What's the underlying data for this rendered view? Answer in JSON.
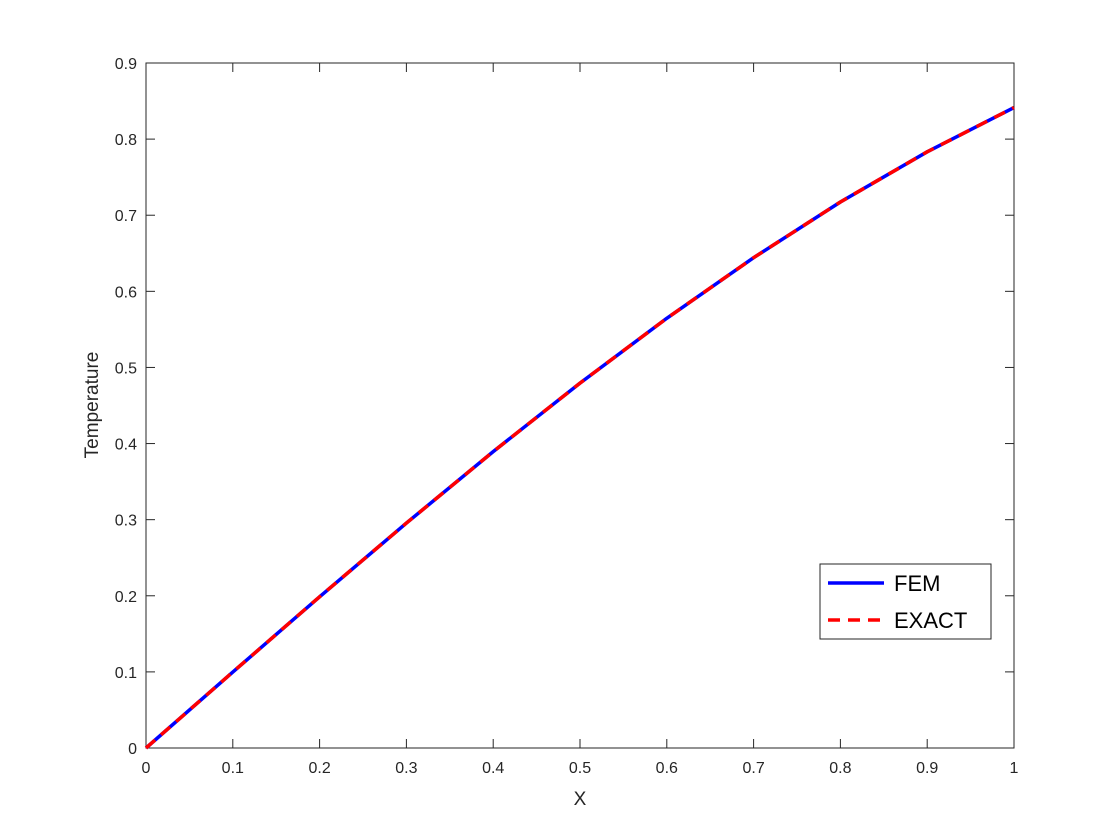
{
  "chart_data": {
    "type": "line",
    "title": "",
    "xlabel": "X",
    "ylabel": "Temperature",
    "xlim": [
      0,
      1
    ],
    "ylim": [
      0,
      0.9
    ],
    "xticks": [
      0,
      0.1,
      0.2,
      0.3,
      0.4,
      0.5,
      0.6,
      0.7,
      0.8,
      0.9,
      1
    ],
    "xtick_labels": [
      "0",
      "0.1",
      "0.2",
      "0.3",
      "0.4",
      "0.5",
      "0.6",
      "0.7",
      "0.8",
      "0.9",
      "1"
    ],
    "yticks": [
      0,
      0.1,
      0.2,
      0.3,
      0.4,
      0.5,
      0.6,
      0.7,
      0.8,
      0.9
    ],
    "ytick_labels": [
      "0",
      "0.1",
      "0.2",
      "0.3",
      "0.4",
      "0.5",
      "0.6",
      "0.7",
      "0.8",
      "0.9"
    ],
    "grid": false,
    "legend_position": "lower-right",
    "x": [
      0,
      0.1,
      0.2,
      0.3,
      0.4,
      0.5,
      0.6,
      0.7,
      0.8,
      0.9,
      1.0
    ],
    "series": [
      {
        "name": "FEM",
        "color": "#0000ff",
        "style": "solid",
        "values": [
          0,
          0.0998,
          0.1987,
          0.2955,
          0.3894,
          0.4794,
          0.5646,
          0.6442,
          0.7174,
          0.7833,
          0.8415
        ]
      },
      {
        "name": "EXACT",
        "color": "#ff0000",
        "style": "dashed",
        "values": [
          0,
          0.0998,
          0.1987,
          0.2955,
          0.3894,
          0.4794,
          0.5646,
          0.6442,
          0.7174,
          0.7833,
          0.8415
        ]
      }
    ]
  }
}
